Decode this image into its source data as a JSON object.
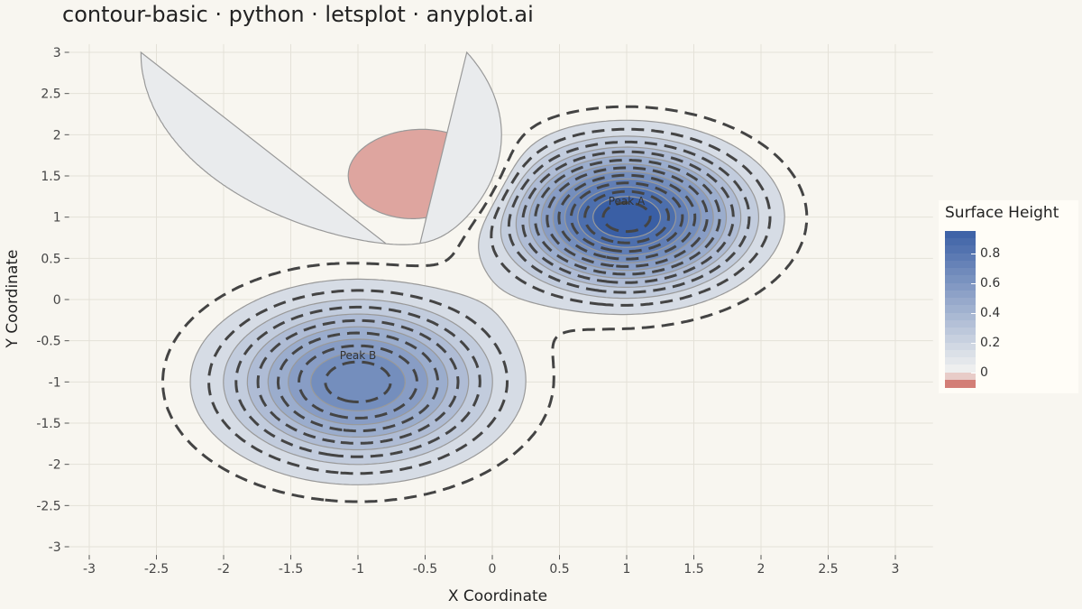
{
  "title": "contour-basic · python · letsplot · anyplot.ai",
  "chart_data": {
    "type": "contour",
    "function": "z = exp(-((x-1)^2 + (y-1)^2)/0.6) + 0.7*exp(-((x+1)^2 + (y+1)^2)/0.8) - 0.3*exp(-((x+0.5)^2 + (y-1.5)^2)/0.3)",
    "xlabel": "X Coordinate",
    "ylabel": "Y Coordinate",
    "xlim": [
      -3,
      3
    ],
    "ylim": [
      -3,
      3
    ],
    "x_ticks": [
      "-3",
      "-2.5",
      "-2",
      "-1.5",
      "-1",
      "-0.5",
      "0",
      "0.5",
      "1",
      "1.5",
      "2",
      "2.5",
      "3"
    ],
    "y_ticks": [
      "3",
      "2.5",
      "2",
      "1.5",
      "1",
      "0.5",
      "0",
      "-0.5",
      "-1",
      "-1.5",
      "-2",
      "-2.5",
      "-3"
    ],
    "filled_levels": [
      -0.1,
      0,
      0.1,
      0.2,
      0.3,
      0.4,
      0.5,
      0.6,
      0.7,
      0.8,
      0.9
    ],
    "dashed_levels": [
      0.05,
      0.15,
      0.25,
      0.35,
      0.45,
      0.55,
      0.65,
      0.75,
      0.85,
      0.95
    ],
    "annotations": [
      {
        "text": "Peak A",
        "x": 1.0,
        "y": 1.15
      },
      {
        "text": "Peak B",
        "x": -1.0,
        "y": -0.72
      }
    ],
    "grid": true,
    "legend": {
      "title": "Surface Height",
      "position": "right",
      "labels": [
        "0.8",
        "0.6",
        "0.4",
        "0.2",
        "0"
      ],
      "label_values": [
        0.8,
        0.6,
        0.4,
        0.2,
        0
      ],
      "range": [
        -0.1,
        0.95
      ],
      "low_color": "#c8574d",
      "zero_color": "#f3f3f1",
      "high_color": "#3a5fa5"
    },
    "colors": {
      "grid": "#e4e1d8",
      "band_outline": "#999999",
      "dashed_line": "#444444"
    }
  }
}
